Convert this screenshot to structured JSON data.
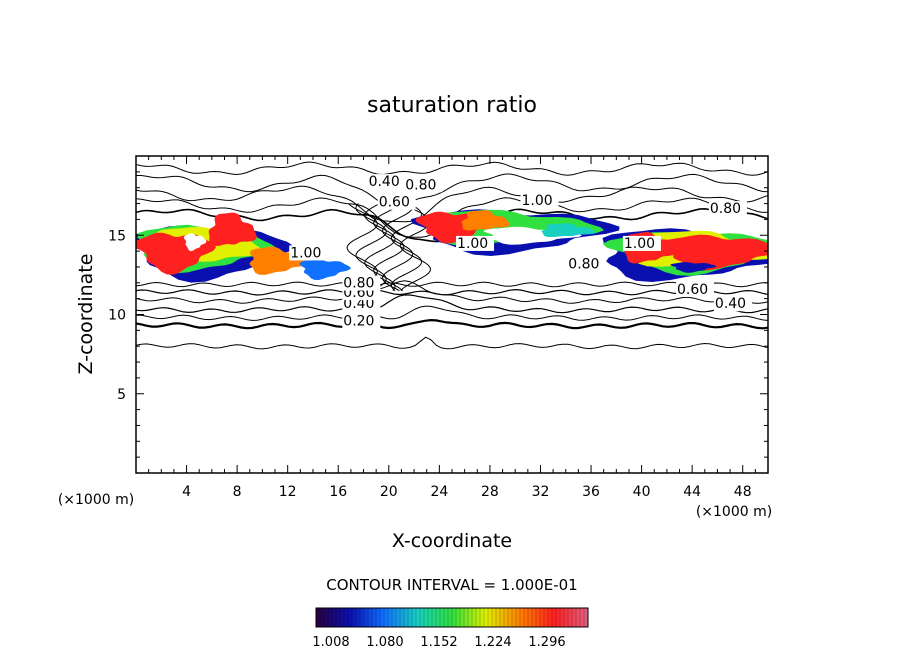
{
  "chart_data": {
    "type": "heatmap",
    "title": "saturation ratio",
    "xlabel": "X-coordinate",
    "ylabel": "Z-coordinate",
    "x_unit": "(×1000 m)",
    "z_unit": "(×1000 m)",
    "xlim": [
      0,
      50
    ],
    "ylim": [
      0,
      20
    ],
    "x_ticks": [
      4,
      8,
      12,
      16,
      20,
      24,
      28,
      32,
      36,
      40,
      44,
      48
    ],
    "y_ticks": [
      5,
      10,
      15
    ],
    "contour_interval_text": "CONTOUR INTERVAL = 1.000E-01",
    "colorbar": {
      "labels": [
        "1.008",
        "1.080",
        "1.152",
        "1.224",
        "1.296"
      ],
      "colors": [
        "#2a0040",
        "#0a10b0",
        "#1070ff",
        "#18d0c0",
        "#30e040",
        "#e0f000",
        "#ff8000",
        "#ff2020",
        "#e06080"
      ]
    },
    "contour_labels": [
      {
        "text": "0.20",
        "x": 16.4,
        "z": 9.3
      },
      {
        "text": "0.40",
        "x": 16.4,
        "z": 10.4
      },
      {
        "text": "0.60",
        "x": 16.4,
        "z": 11.1
      },
      {
        "text": "0.80",
        "x": 16.4,
        "z": 11.7
      },
      {
        "text": "1.00",
        "x": 12.2,
        "z": 13.6
      },
      {
        "text": "0.40",
        "x": 18.4,
        "z": 18.1
      },
      {
        "text": "0.60",
        "x": 19.2,
        "z": 16.8
      },
      {
        "text": "0.80",
        "x": 21.3,
        "z": 17.9
      },
      {
        "text": "1.00",
        "x": 30.5,
        "z": 16.9
      },
      {
        "text": "1.00",
        "x": 25.4,
        "z": 14.2
      },
      {
        "text": "0.80",
        "x": 34.2,
        "z": 12.9
      },
      {
        "text": "1.00",
        "x": 38.6,
        "z": 14.2
      },
      {
        "text": "0.80",
        "x": 45.4,
        "z": 16.4
      },
      {
        "text": "0.60",
        "x": 42.8,
        "z": 11.3
      },
      {
        "text": "0.40",
        "x": 45.8,
        "z": 10.4
      }
    ]
  }
}
